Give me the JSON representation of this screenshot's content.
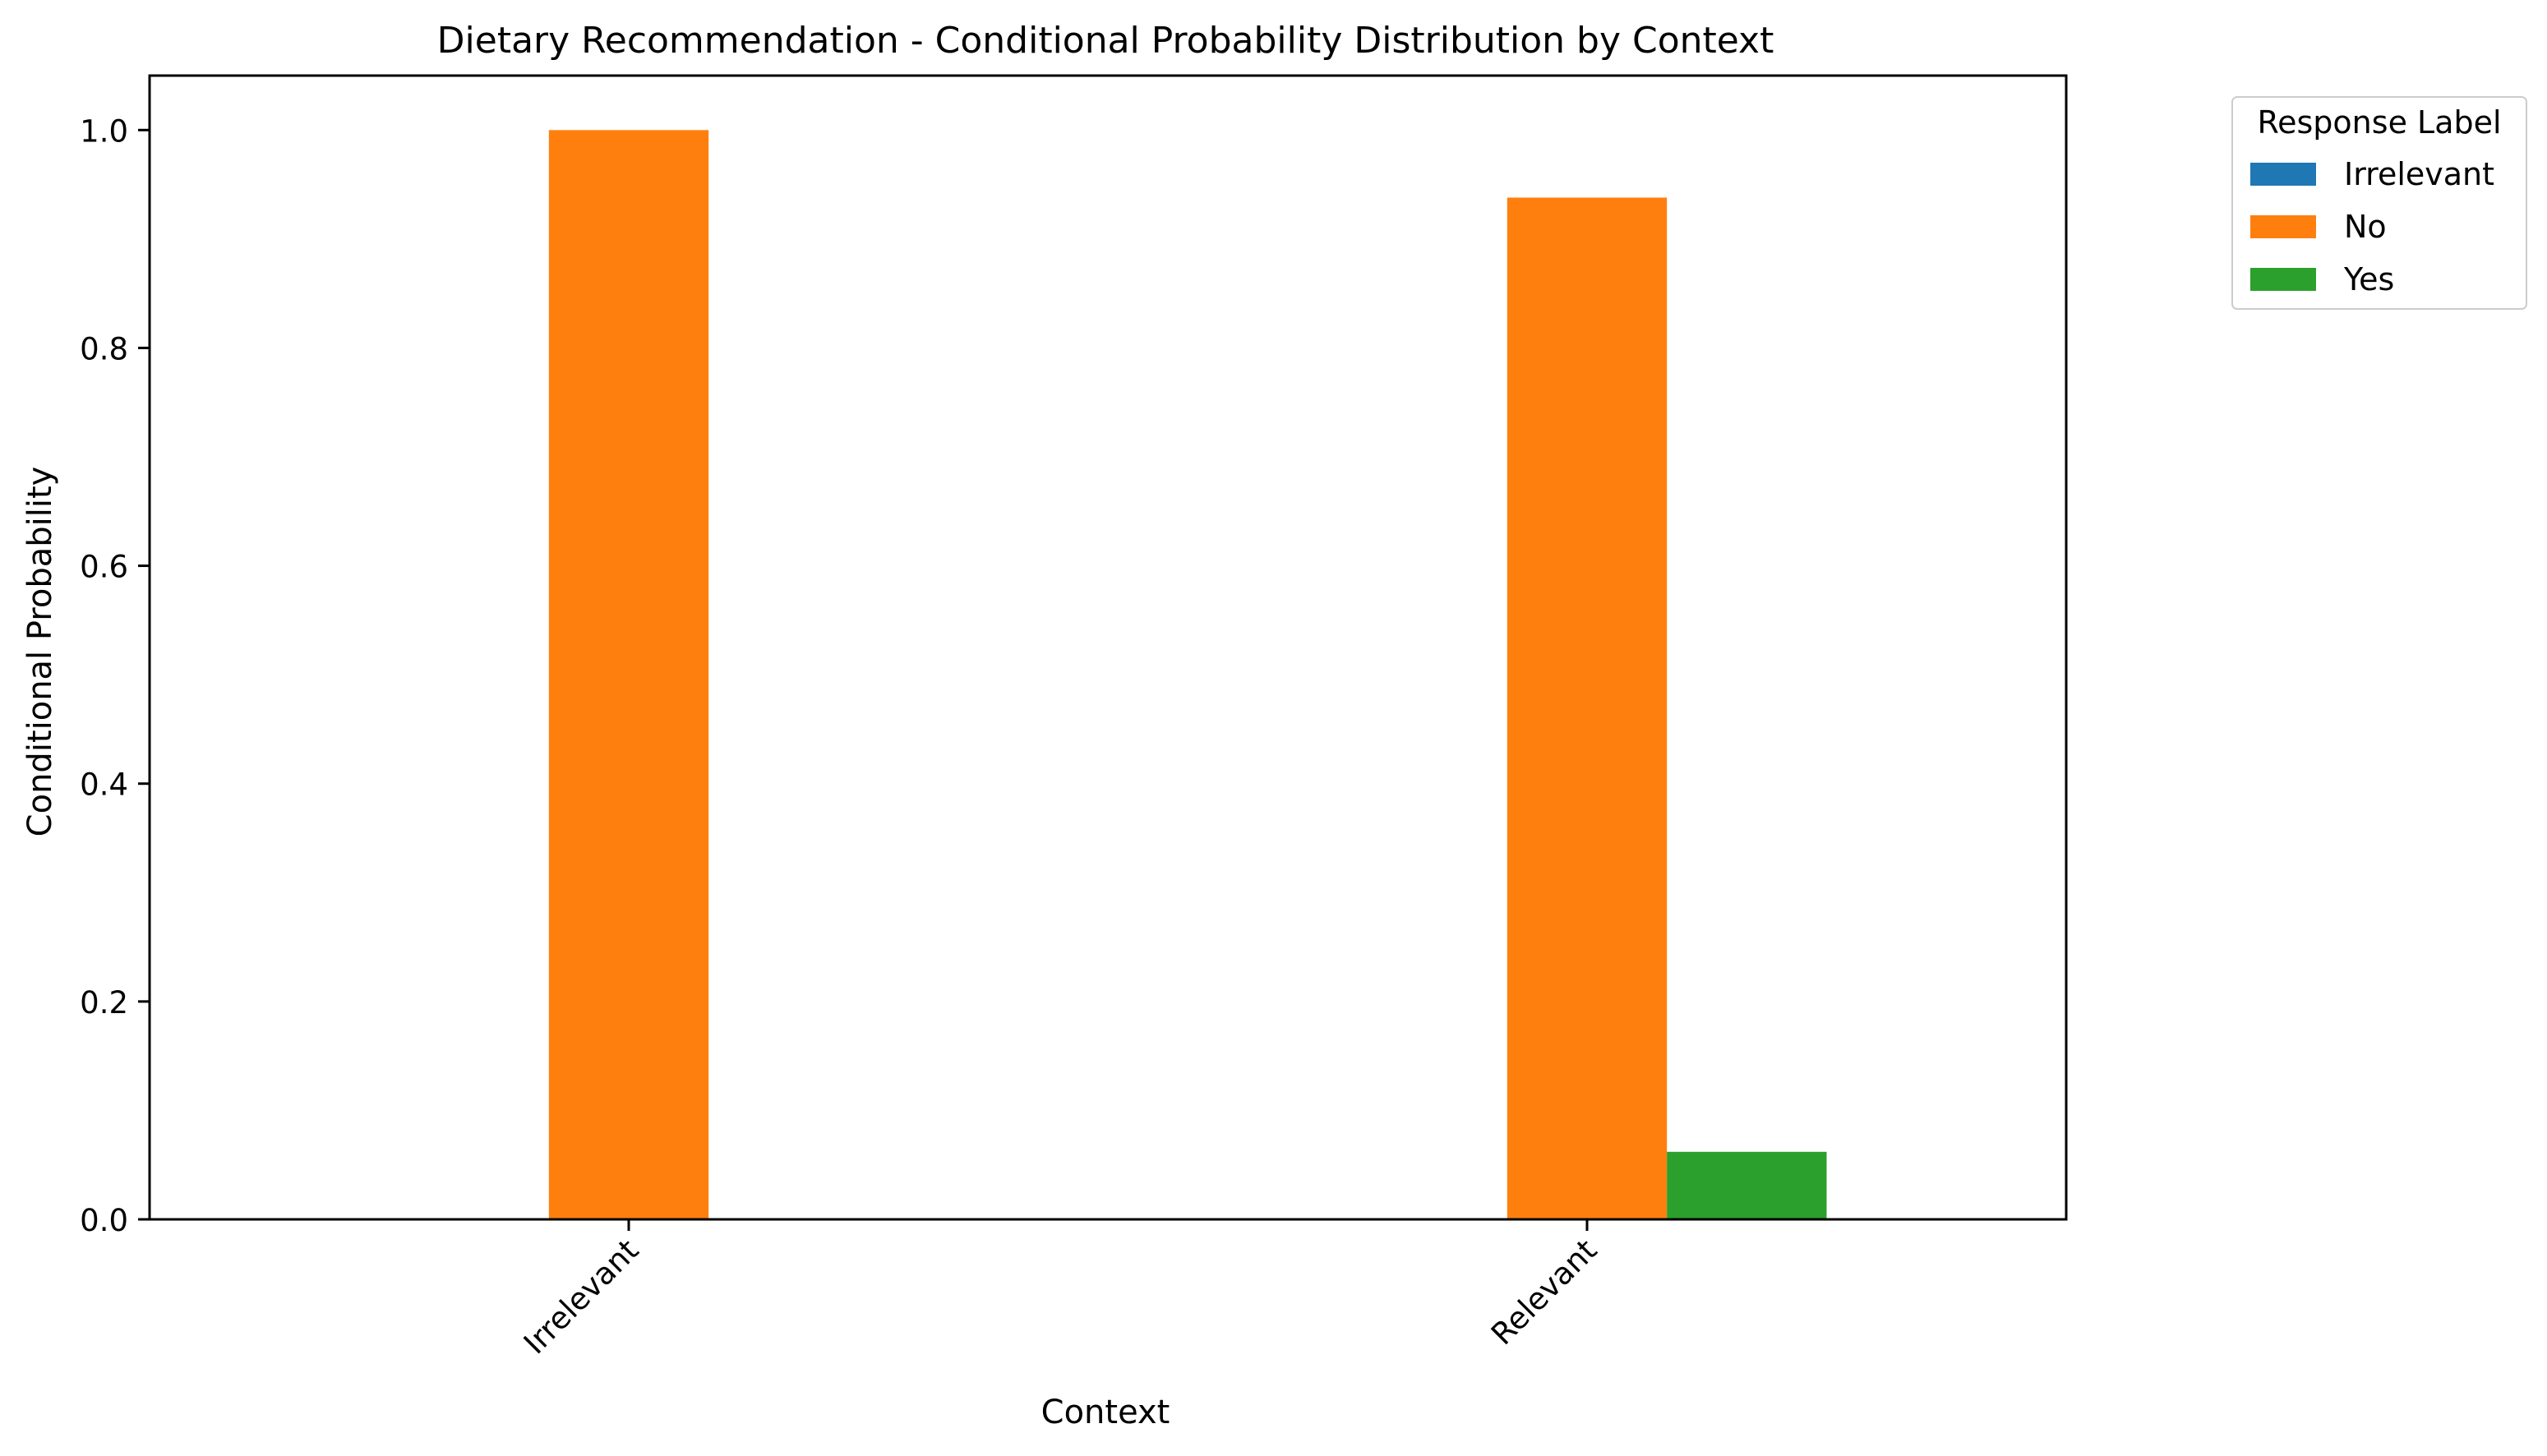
{
  "chart_data": {
    "type": "bar",
    "title": "Dietary Recommendation - Conditional Probability Distribution by Context",
    "xlabel": "Context",
    "ylabel": "Conditional Probability",
    "categories": [
      "Irrelevant",
      "Relevant"
    ],
    "series": [
      {
        "name": "Irrelevant",
        "color": "#1f77b4",
        "values": [
          0.0,
          0.0
        ]
      },
      {
        "name": "No",
        "color": "#ff7f0e",
        "values": [
          1.0,
          0.938
        ]
      },
      {
        "name": "Yes",
        "color": "#2ca02c",
        "values": [
          0.0,
          0.062
        ]
      }
    ],
    "ylim": [
      0,
      1.05
    ],
    "yticks": [
      "0.0",
      "0.2",
      "0.4",
      "0.6",
      "0.8",
      "1.0"
    ],
    "grid": false,
    "legend": {
      "title": "Response Label",
      "placement": "outside-top-right"
    }
  }
}
